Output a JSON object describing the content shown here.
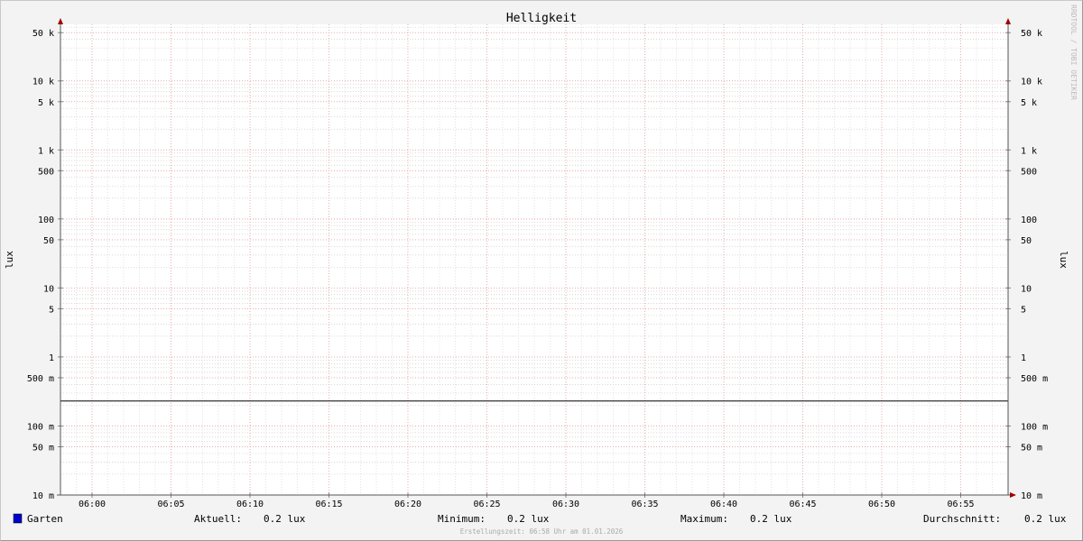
{
  "chart_data": {
    "type": "line",
    "title": "Helligkeit",
    "ylabel": "lux",
    "ylabel_right": "lux",
    "y_scale": "log",
    "ylim": [
      0.01,
      66000
    ],
    "y_ticks": [
      {
        "value": 50000,
        "label": "50 k"
      },
      {
        "value": 10000,
        "label": "10 k"
      },
      {
        "value": 5000,
        "label": "5 k"
      },
      {
        "value": 1000,
        "label": "1 k"
      },
      {
        "value": 500,
        "label": "500"
      },
      {
        "value": 100,
        "label": "100"
      },
      {
        "value": 50,
        "label": "50"
      },
      {
        "value": 10,
        "label": "10"
      },
      {
        "value": 5,
        "label": "5"
      },
      {
        "value": 1,
        "label": "1"
      },
      {
        "value": 0.5,
        "label": "500 m"
      },
      {
        "value": 0.1,
        "label": "100 m"
      },
      {
        "value": 0.05,
        "label": "50 m"
      },
      {
        "value": 0.01,
        "label": "10 m"
      }
    ],
    "x_ticks": [
      "06:00",
      "06:05",
      "06:10",
      "06:15",
      "06:20",
      "06:25",
      "06:30",
      "06:35",
      "06:40",
      "06:45",
      "06:50",
      "06:55"
    ],
    "xlim": [
      "05:58",
      "06:58"
    ],
    "grid": true,
    "series": [
      {
        "name": "Garten",
        "color": "#0000cc",
        "line_color": "#000000",
        "x": [
          "05:58",
          "06:58"
        ],
        "values": [
          0.23,
          0.23
        ]
      }
    ]
  },
  "legend": {
    "series_name": "Garten",
    "current_label": "Aktuell:",
    "current_value": "0.2 lux",
    "min_label": "Minimum:",
    "min_value": "0.2 lux",
    "max_label": "Maximum:",
    "max_value": "0.2 lux",
    "avg_label": "Durchschnitt:",
    "avg_value": "0.2 lux"
  },
  "footer": "Erstellungszeit: 06:58 Uhr am 01.01.2026",
  "watermark": "RRDTOOL / TOBI OETIKER"
}
